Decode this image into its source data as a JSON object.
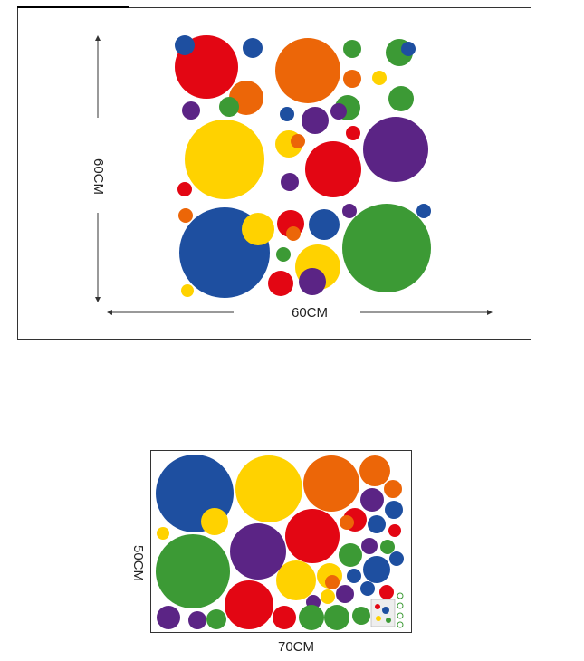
{
  "top_panel": {
    "height_label": "60CM",
    "width_label": "60CM"
  },
  "bottom_panel": {
    "height_label": "50CM",
    "width_label": "70CM"
  }
}
